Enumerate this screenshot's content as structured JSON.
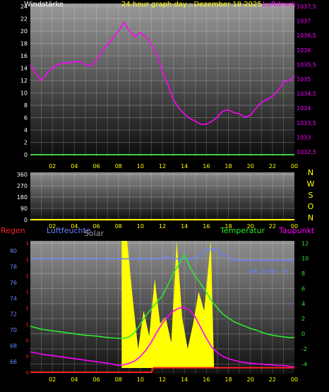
{
  "colors": {
    "background": "#000000",
    "axis_white": "#ffffff",
    "axis_yellow": "#ffff00",
    "magenta": "#ff00ff",
    "green": "#2ee82e",
    "wind_green": "#3ecf3e",
    "blue": "#6f83ff",
    "red": "#ff2020",
    "solar": "#ffff00",
    "title_yellow": "#ffff00"
  },
  "chart_data": [
    {
      "type": "line",
      "title": "24 hour graph day : Dezember 18 2025",
      "left_label": "Windstärke",
      "right_label": "Luftdruck",
      "x_ticks": [
        "02",
        "04",
        "06",
        "08",
        "10",
        "12",
        "14",
        "16",
        "18",
        "20",
        "22",
        "00"
      ],
      "xlim": [
        0,
        24
      ],
      "y_left": {
        "ticks": [
          "0",
          "2",
          "4",
          "6",
          "8",
          "10",
          "12",
          "14",
          "16",
          "18",
          "20",
          "22",
          "24"
        ],
        "ylim": [
          0,
          24
        ]
      },
      "y_right": {
        "ticks": [
          "1032,5",
          "1033",
          "1033,5",
          "1034",
          "1034,5",
          "1035",
          "1035,5",
          "1036",
          "1036,5",
          "1037",
          "1037,5"
        ],
        "ylim": [
          1032.5,
          1037.5
        ]
      },
      "grid": true,
      "series": [
        {
          "name": "Luftdruck",
          "axis": "right",
          "color_key": "magenta",
          "x": [
            0,
            0.5,
            1,
            1.5,
            2,
            2.5,
            3,
            3.5,
            4,
            4.5,
            5,
            5.5,
            6,
            6.5,
            7,
            7.5,
            8,
            8.5,
            9,
            9.5,
            10,
            10.5,
            11,
            11.5,
            12,
            12.5,
            13,
            13.5,
            14,
            14.5,
            15,
            15.5,
            16,
            16.5,
            17,
            17.5,
            18,
            18.5,
            19,
            19.5,
            20,
            20.5,
            21,
            21.5,
            22,
            22.5,
            23,
            23.5,
            24
          ],
          "y": [
            1035.5,
            1035.2,
            1034.95,
            1035.2,
            1035.4,
            1035.5,
            1035.55,
            1035.55,
            1035.6,
            1035.6,
            1035.5,
            1035.45,
            1035.65,
            1035.95,
            1036.2,
            1036.4,
            1036.65,
            1036.95,
            1036.65,
            1036.45,
            1036.6,
            1036.45,
            1036.2,
            1035.85,
            1035.3,
            1034.8,
            1034.3,
            1034.0,
            1033.8,
            1033.65,
            1033.55,
            1033.45,
            1033.45,
            1033.55,
            1033.7,
            1033.9,
            1033.95,
            1033.85,
            1033.8,
            1033.7,
            1033.75,
            1034.0,
            1034.2,
            1034.3,
            1034.4,
            1034.6,
            1034.9,
            1034.95,
            1035.1
          ]
        },
        {
          "name": "Windstärke",
          "axis": "left",
          "color_key": "wind_green",
          "x": [
            0,
            24
          ],
          "y": [
            0,
            0
          ]
        }
      ]
    },
    {
      "type": "line",
      "title": "",
      "y_ticks": [
        "0",
        "90",
        "180",
        "270",
        "360"
      ],
      "ylim": [
        0,
        360
      ],
      "x_ticks": [
        "02",
        "04",
        "06",
        "08",
        "10",
        "12",
        "14",
        "16",
        "18",
        "20",
        "22",
        "00"
      ],
      "xlim": [
        0,
        24
      ],
      "compass_labels": [
        "N",
        "W",
        "S",
        "O",
        "N"
      ],
      "grid": true,
      "series": [
        {
          "name": "",
          "color_key": "solar",
          "x": [
            0,
            24
          ],
          "y": [
            0,
            0
          ]
        }
      ]
    },
    {
      "type": "line",
      "title": "",
      "labels": {
        "rain": "Regen",
        "humidity": "Luftfeuchte",
        "solar": "Solar",
        "temperature": "Temperatur",
        "dewpoint": "Taupunkt"
      },
      "y_left_rain": {
        "ticks": [
          "0",
          "0",
          "0",
          "1",
          "1",
          "1",
          "1",
          "1",
          "1"
        ]
      },
      "y_left_humidity": {
        "ticks": [
          "66",
          "68",
          "70",
          "72",
          "74",
          "76",
          "78",
          "80"
        ],
        "ylim": [
          65,
          81
        ]
      },
      "y_right": {
        "ticks": [
          "-4",
          "-2",
          "0",
          "2",
          "4",
          "6",
          "8",
          "10",
          "12"
        ],
        "ylim": [
          -5,
          12.5
        ]
      },
      "x_ticks": [
        "02",
        "04",
        "06",
        "08",
        "10",
        "12",
        "14",
        "16",
        "18",
        "20",
        "22",
        "00"
      ],
      "xlim": [
        0,
        24
      ],
      "annotation": "-ok,m-ts- -e",
      "grid": true,
      "series": [
        {
          "name": "Luftfeuchte",
          "axis": "left_humidity",
          "color_key": "blue",
          "x": [
            0,
            11.5,
            12,
            12.3,
            12.6,
            13,
            13.5,
            14,
            14.5,
            15,
            15.5,
            16,
            16.3,
            17,
            17.5,
            18,
            18.3,
            18.8,
            24
          ],
          "y": [
            79.0,
            79.0,
            79.0,
            79.4,
            79.0,
            79.0,
            79.0,
            79.0,
            79.0,
            79.0,
            79.6,
            80.2,
            80.2,
            80.2,
            79.4,
            79.4,
            78.8,
            78.8,
            78.8
          ]
        },
        {
          "name": "Temperatur",
          "axis": "right",
          "color_key": "green",
          "x": [
            0,
            1,
            2,
            3,
            4,
            5,
            6,
            7,
            8,
            8.5,
            9,
            9.5,
            10,
            10.5,
            11,
            11.5,
            12,
            12.5,
            13,
            13.5,
            14,
            14.5,
            15,
            15.5,
            16,
            16.5,
            17,
            17.5,
            18,
            18.5,
            19,
            19.5,
            20,
            20.5,
            21,
            21.5,
            22,
            22.5,
            23,
            23.5,
            24
          ],
          "y": [
            1.0,
            0.6,
            0.4,
            0.2,
            0.0,
            -0.2,
            -0.3,
            -0.5,
            -0.6,
            -0.6,
            -0.4,
            0.2,
            1.3,
            2.4,
            3.3,
            4.2,
            5.0,
            6.5,
            8.0,
            9.2,
            10.5,
            8.8,
            7.6,
            6.6,
            5.5,
            4.3,
            3.4,
            2.6,
            2.1,
            1.6,
            1.3,
            1.0,
            0.7,
            0.5,
            0.2,
            0.0,
            -0.2,
            -0.3,
            -0.4,
            -0.5,
            -0.5
          ]
        },
        {
          "name": "Taupunkt",
          "axis": "right",
          "color_key": "magenta",
          "x": [
            0,
            1,
            2,
            3,
            4,
            5,
            6,
            7,
            8,
            8.5,
            9,
            9.5,
            10,
            10.5,
            11,
            11.5,
            12,
            12.5,
            13,
            13.5,
            14,
            14.5,
            15,
            15.5,
            16,
            16.5,
            17,
            17.5,
            18,
            18.5,
            19,
            19.5,
            20,
            20.5,
            21,
            21.5,
            22,
            22.5,
            23,
            23.5,
            24
          ],
          "y": [
            -2.4,
            -2.7,
            -2.9,
            -3.1,
            -3.3,
            -3.5,
            -3.7,
            -3.9,
            -4.2,
            -4.1,
            -3.9,
            -3.6,
            -3.0,
            -2.2,
            -1.1,
            0.2,
            1.4,
            2.3,
            3.0,
            3.4,
            3.5,
            3.1,
            2.2,
            0.8,
            -0.6,
            -1.8,
            -2.5,
            -3.0,
            -3.3,
            -3.5,
            -3.7,
            -3.8,
            -3.9,
            -4.0,
            -4.0,
            -4.1,
            -4.1,
            -4.2,
            -4.2,
            -4.3,
            -4.4
          ]
        },
        {
          "name": "Regen",
          "axis": "left_rain",
          "color_key": "red",
          "x": [
            0,
            11,
            11.2,
            24
          ],
          "y": [
            0.0,
            0.0,
            0.4,
            0.4
          ]
        },
        {
          "name": "Solar",
          "color_key": "solar",
          "type": "area",
          "x": [
            8.3,
            8.8,
            9.3,
            9.8,
            10.3,
            10.8,
            11.3,
            11.8,
            12.3,
            12.8,
            13.3,
            13.8,
            14.3,
            14.8,
            15.3,
            15.8,
            16.4,
            16.7
          ],
          "y": [
            1.0,
            1.0,
            0.55,
            0.15,
            0.45,
            0.25,
            0.7,
            0.35,
            0.4,
            0.2,
            1.0,
            0.4,
            0.15,
            0.35,
            0.6,
            0.45,
            1.0,
            0.0
          ]
        }
      ]
    }
  ]
}
